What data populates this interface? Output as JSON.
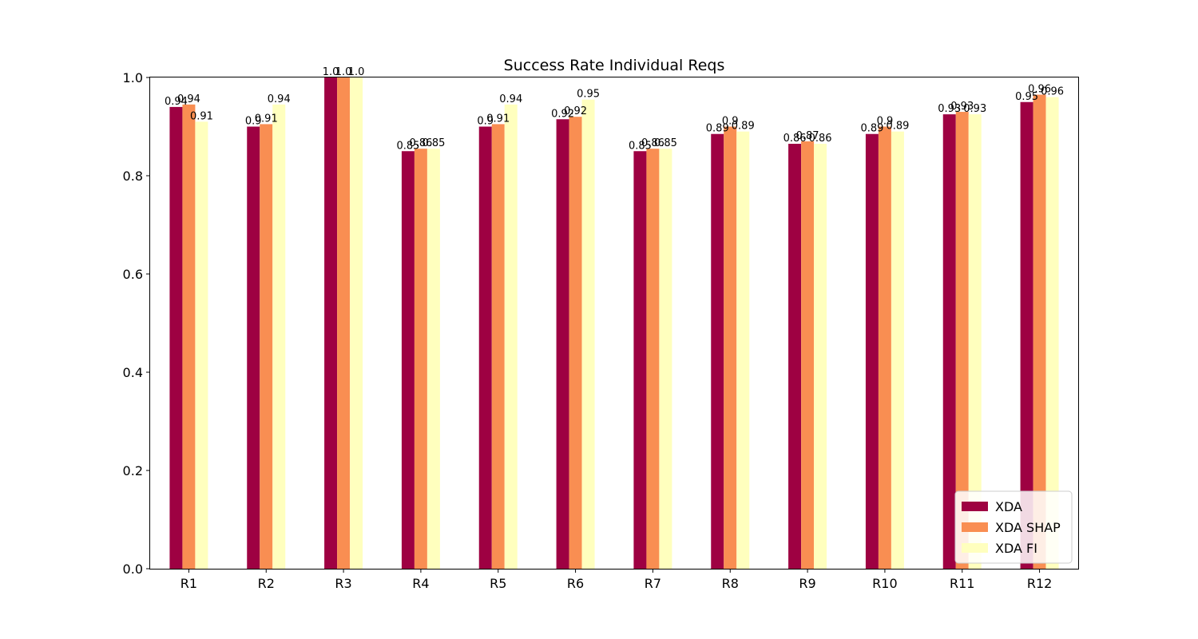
{
  "chart_data": {
    "type": "bar",
    "title": "Success Rate Individual Reqs",
    "xlabel": "",
    "ylabel": "",
    "ylim": [
      0,
      1.0
    ],
    "yticks": [
      "0.0",
      "0.2",
      "0.4",
      "0.6",
      "0.8",
      "1.0"
    ],
    "grid": false,
    "legend_position": "bottom-right",
    "categories": [
      "R1",
      "R2",
      "R3",
      "R4",
      "R5",
      "R6",
      "R7",
      "R8",
      "R9",
      "R10",
      "R11",
      "R12"
    ],
    "series": [
      {
        "name": "XDA",
        "color": "#9e0142",
        "values": [
          0.94,
          0.9,
          1.0,
          0.85,
          0.9,
          0.915,
          0.85,
          0.885,
          0.865,
          0.885,
          0.925,
          0.95
        ],
        "labels": [
          "0.94",
          "0.9",
          "1.0",
          "0.85",
          "0.9",
          "0.92",
          "0.85",
          "0.89",
          "0.86",
          "0.89",
          "0.93",
          "0.95"
        ]
      },
      {
        "name": "XDA SHAP",
        "color": "#f98e52",
        "values": [
          0.945,
          0.905,
          1.0,
          0.855,
          0.905,
          0.92,
          0.855,
          0.9,
          0.87,
          0.9,
          0.93,
          0.965
        ],
        "labels": [
          "0.94",
          "0.91",
          "1.0",
          "0.86",
          "0.91",
          "0.92",
          "0.86",
          "0.9",
          "0.87",
          "0.9",
          "0.93",
          "0.96"
        ]
      },
      {
        "name": "XDA FI",
        "color": "#ffffbe",
        "values": [
          0.91,
          0.945,
          1.0,
          0.855,
          0.945,
          0.955,
          0.855,
          0.89,
          0.865,
          0.89,
          0.925,
          0.96
        ],
        "labels": [
          "0.91",
          "0.94",
          "1.0",
          "0.85",
          "0.94",
          "0.95",
          "0.85",
          "0.89",
          "0.86",
          "0.89",
          "0.93",
          "0.96"
        ]
      }
    ]
  }
}
